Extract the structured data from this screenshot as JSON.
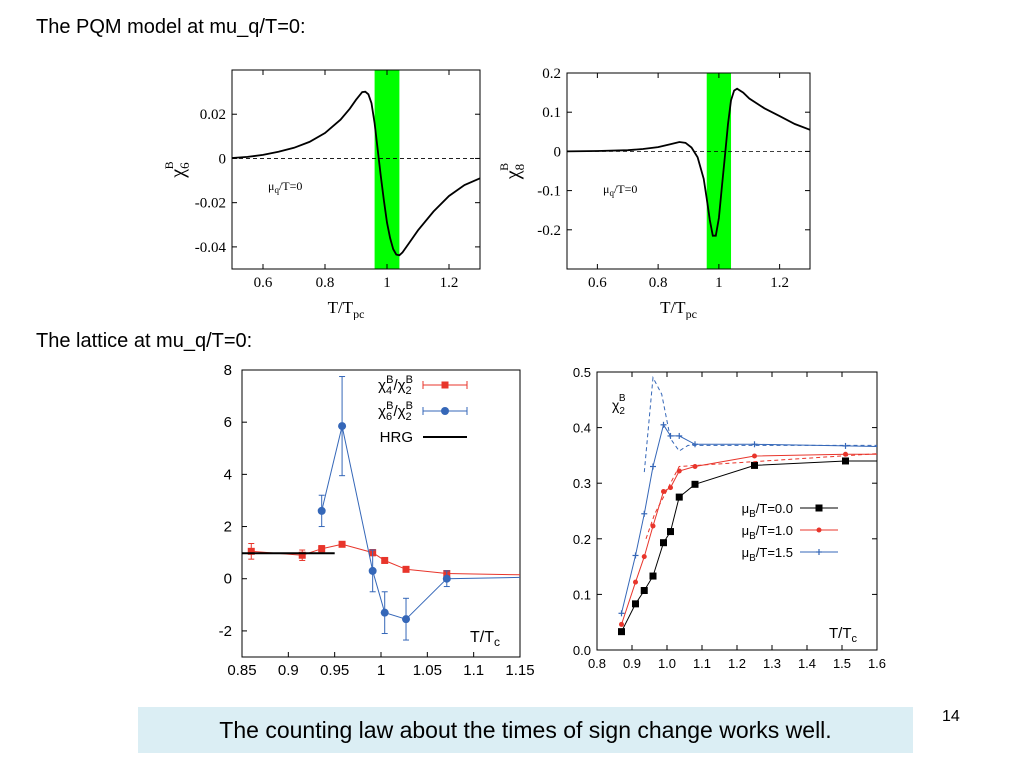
{
  "slide": {
    "heading_pqm": "The PQM model at mu_q/T=0:",
    "heading_lattice": "The lattice at mu_q/T=0:",
    "footer": "The counting law about the times of sign change works well.",
    "page_number": "14"
  },
  "colors": {
    "band": "#00ff00",
    "red": "#e8352b",
    "blue": "#3567b8",
    "black": "#000000",
    "footer_bg": "#dbeef4"
  },
  "chart_data": [
    {
      "id": "chi6",
      "type": "line",
      "title": "",
      "xlabel": "T/T_pc",
      "ylabel": "χ_6^B",
      "annotation": "μ_q/T=0",
      "xlim": [
        0.5,
        1.3
      ],
      "ylim": [
        -0.05,
        0.04
      ],
      "xticks": [
        0.6,
        0.8,
        1.0,
        1.2
      ],
      "xtick_labels": [
        "0.6",
        "0.8",
        "1",
        "1.2"
      ],
      "yticks": [
        0.02,
        0,
        -0.02,
        -0.04
      ],
      "ytick_labels": [
        "0.02",
        "0",
        "-0.02",
        "-0.04"
      ],
      "band": [
        0.96,
        1.04
      ],
      "zero_line": true,
      "series": [
        {
          "values": [
            [
              0.5,
              0.0002
            ],
            [
              0.55,
              0.0007
            ],
            [
              0.6,
              0.0016
            ],
            [
              0.65,
              0.003
            ],
            [
              0.7,
              0.0048
            ],
            [
              0.75,
              0.0075
            ],
            [
              0.8,
              0.0115
            ],
            [
              0.85,
              0.0175
            ],
            [
              0.88,
              0.0225
            ],
            [
              0.9,
              0.0265
            ],
            [
              0.92,
              0.03
            ],
            [
              0.93,
              0.0302
            ],
            [
              0.94,
              0.029
            ],
            [
              0.95,
              0.025
            ],
            [
              0.96,
              0.016
            ],
            [
              0.97,
              0.004
            ],
            [
              0.98,
              -0.008
            ],
            [
              0.99,
              -0.019
            ],
            [
              1.0,
              -0.029
            ],
            [
              1.01,
              -0.036
            ],
            [
              1.02,
              -0.041
            ],
            [
              1.03,
              -0.0435
            ],
            [
              1.04,
              -0.0438
            ],
            [
              1.05,
              -0.0425
            ],
            [
              1.07,
              -0.0385
            ],
            [
              1.1,
              -0.0325
            ],
            [
              1.15,
              -0.024
            ],
            [
              1.2,
              -0.017
            ],
            [
              1.25,
              -0.012
            ],
            [
              1.3,
              -0.009
            ]
          ]
        }
      ]
    },
    {
      "id": "chi8",
      "type": "line",
      "title": "",
      "xlabel": "T/T_pc",
      "ylabel": "χ_8^B",
      "annotation": "μ_q/T=0",
      "xlim": [
        0.5,
        1.3
      ],
      "ylim": [
        -0.3,
        0.2
      ],
      "xticks": [
        0.6,
        0.8,
        1.0,
        1.2
      ],
      "xtick_labels": [
        "0.6",
        "0.8",
        "1",
        "1.2"
      ],
      "yticks": [
        0.2,
        0.1,
        0,
        -0.1,
        -0.2
      ],
      "ytick_labels": [
        "0.2",
        "0.1",
        "0",
        "-0.1",
        "-0.2"
      ],
      "band": [
        0.96,
        1.04
      ],
      "zero_line": true,
      "series": [
        {
          "values": [
            [
              0.5,
              0.0
            ],
            [
              0.6,
              0.001
            ],
            [
              0.7,
              0.003
            ],
            [
              0.75,
              0.006
            ],
            [
              0.8,
              0.011
            ],
            [
              0.84,
              0.018
            ],
            [
              0.87,
              0.024
            ],
            [
              0.89,
              0.022
            ],
            [
              0.91,
              0.01
            ],
            [
              0.93,
              -0.015
            ],
            [
              0.95,
              -0.07
            ],
            [
              0.96,
              -0.12
            ],
            [
              0.97,
              -0.175
            ],
            [
              0.98,
              -0.215
            ],
            [
              0.99,
              -0.215
            ],
            [
              1.0,
              -0.17
            ],
            [
              1.01,
              -0.09
            ],
            [
              1.02,
              -0.01
            ],
            [
              1.03,
              0.07
            ],
            [
              1.04,
              0.13
            ],
            [
              1.05,
              0.155
            ],
            [
              1.06,
              0.16
            ],
            [
              1.08,
              0.15
            ],
            [
              1.1,
              0.135
            ],
            [
              1.15,
              0.11
            ],
            [
              1.2,
              0.09
            ],
            [
              1.25,
              0.07
            ],
            [
              1.3,
              0.055
            ]
          ]
        }
      ]
    },
    {
      "id": "lattice-ratios",
      "type": "line",
      "title": "",
      "xlabel": "T/T_c",
      "xlim": [
        0.85,
        1.15
      ],
      "ylim": [
        -3,
        8
      ],
      "xticks": [
        0.85,
        0.9,
        0.95,
        1.0,
        1.05,
        1.1,
        1.15
      ],
      "xtick_labels": [
        "0.85",
        "0.9",
        "0.95",
        "1",
        "1.05",
        "1.1",
        "1.15"
      ],
      "yticks": [
        8,
        6,
        4,
        2,
        0,
        -2
      ],
      "ytick_labels": [
        "8",
        "6",
        "4",
        "2",
        "0",
        "-2"
      ],
      "legend_position": "top-right",
      "series": [
        {
          "name": "χ4B/χ2B",
          "color": "red",
          "marker": "square",
          "values": [
            [
              0.86,
              1.05,
              0.3
            ],
            [
              0.915,
              0.9,
              0.2
            ],
            [
              0.936,
              1.15,
              0.12
            ],
            [
              0.958,
              1.32,
              0.08
            ],
            [
              0.991,
              1.0,
              0.12
            ],
            [
              1.004,
              0.7,
              0.06
            ],
            [
              1.027,
              0.36,
              0.06
            ],
            [
              1.071,
              0.2,
              0.05
            ],
            [
              1.15,
              0.15,
              0
            ]
          ]
        },
        {
          "name": "χ6B/χ2B",
          "color": "blue",
          "marker": "circle",
          "values": [
            [
              0.936,
              2.6,
              0.6
            ],
            [
              0.958,
              5.85,
              1.9
            ],
            [
              0.991,
              0.3,
              0.8
            ],
            [
              1.004,
              -1.3,
              0.8
            ],
            [
              1.027,
              -1.55,
              0.8
            ],
            [
              1.071,
              0.0,
              0.3
            ],
            [
              1.15,
              0.05,
              0
            ]
          ]
        },
        {
          "name": "HRG",
          "color": "black",
          "marker": "none",
          "values": [
            [
              0.85,
              0.98
            ],
            [
              0.95,
              0.98
            ]
          ]
        }
      ]
    },
    {
      "id": "lattice-chi2",
      "type": "line",
      "title": "",
      "xlabel": "T/T_c",
      "annotation": "χ2B",
      "xlim": [
        0.8,
        1.6
      ],
      "ylim": [
        0,
        0.5
      ],
      "xticks": [
        0.8,
        0.9,
        1.0,
        1.1,
        1.2,
        1.3,
        1.4,
        1.5,
        1.6
      ],
      "xtick_labels": [
        "0.8",
        "0.9",
        "1.0",
        "1.1",
        "1.2",
        "1.3",
        "1.4",
        "1.5",
        "1.6"
      ],
      "yticks": [
        0.5,
        0.4,
        0.3,
        0.2,
        0.1,
        0.0
      ],
      "ytick_labels": [
        "0.5",
        "0.4",
        "0.3",
        "0.2",
        "0.1",
        "0.0"
      ],
      "legend_position": "bottom-right",
      "series": [
        {
          "name": "μB/T=0.0",
          "color": "black",
          "marker": "square",
          "values": [
            [
              0.87,
              0.033
            ],
            [
              0.91,
              0.083
            ],
            [
              0.935,
              0.107
            ],
            [
              0.96,
              0.133
            ],
            [
              0.99,
              0.193
            ],
            [
              1.01,
              0.213
            ],
            [
              1.035,
              0.275
            ],
            [
              1.08,
              0.298
            ],
            [
              1.25,
              0.332
            ],
            [
              1.51,
              0.34
            ],
            [
              1.6,
              0.34
            ]
          ]
        },
        {
          "name": "μB/T=1.0",
          "color": "red",
          "marker": "diamond",
          "values": [
            [
              0.87,
              0.046
            ],
            [
              0.91,
              0.122
            ],
            [
              0.935,
              0.168
            ],
            [
              0.96,
              0.223
            ],
            [
              0.99,
              0.285
            ],
            [
              1.01,
              0.292
            ],
            [
              1.035,
              0.322
            ],
            [
              1.08,
              0.33
            ],
            [
              1.25,
              0.349
            ],
            [
              1.51,
              0.352
            ],
            [
              1.6,
              0.352
            ]
          ]
        },
        {
          "name": "μB/T=1.5",
          "color": "blue",
          "marker": "plus",
          "values": [
            [
              0.87,
              0.066
            ],
            [
              0.91,
              0.17
            ],
            [
              0.935,
              0.245
            ],
            [
              0.96,
              0.33
            ],
            [
              0.99,
              0.405
            ],
            [
              1.01,
              0.385
            ],
            [
              1.035,
              0.385
            ],
            [
              1.08,
              0.37
            ],
            [
              1.25,
              0.37
            ],
            [
              1.51,
              0.367
            ],
            [
              1.6,
              0.366
            ]
          ]
        },
        {
          "color": "blue",
          "marker": "none",
          "dashed": true,
          "values": [
            [
              0.935,
              0.32
            ],
            [
              0.96,
              0.49
            ],
            [
              0.985,
              0.46
            ],
            [
              1.01,
              0.38
            ],
            [
              1.035,
              0.358
            ],
            [
              1.06,
              0.368
            ],
            [
              1.6,
              0.368
            ]
          ]
        },
        {
          "color": "red",
          "marker": "none",
          "dashed": true,
          "values": [
            [
              0.94,
              0.2
            ],
            [
              0.965,
              0.245
            ],
            [
              0.99,
              0.275
            ],
            [
              1.01,
              0.3
            ],
            [
              1.035,
              0.33
            ],
            [
              1.6,
              0.353
            ]
          ]
        }
      ]
    }
  ]
}
